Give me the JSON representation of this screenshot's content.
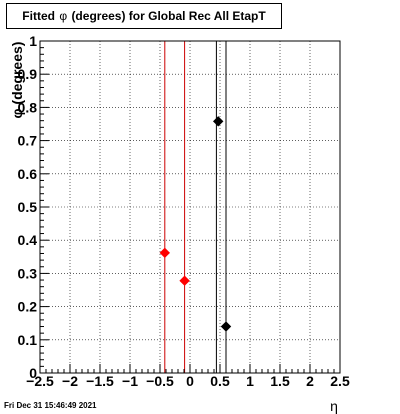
{
  "chart_data": {
    "type": "scatter",
    "title_prefix": "Fitted",
    "title_symbol": "φ",
    "title_suffix": "(degrees) for Global Rec All EtapT",
    "xlabel": "η",
    "ylabel": "φ (degrees)",
    "xlim": [
      -2.5,
      2.5
    ],
    "ylim": [
      0,
      1
    ],
    "xticks": [
      -2.5,
      -2,
      -1.5,
      -1,
      -0.5,
      0,
      0.5,
      1,
      1.5,
      2,
      2.5
    ],
    "xtick_labels": [
      "−2.5",
      "−2",
      "−1.5",
      "−1",
      "−0.5",
      "0",
      "0.5",
      "1",
      "1.5",
      "2",
      "2.5"
    ],
    "yticks": [
      0,
      0.1,
      0.2,
      0.3,
      0.4,
      0.5,
      0.6,
      0.7,
      0.8,
      0.9,
      1
    ],
    "ytick_labels": [
      "0",
      "0.1",
      "0.2",
      "0.3",
      "0.4",
      "0.5",
      "0.6",
      "0.7",
      "0.8",
      "0.9",
      "1"
    ],
    "grid": true,
    "series": [
      {
        "color": "#ff0000",
        "points": [
          [
            -0.42,
            0.362
          ],
          [
            -0.09,
            0.278
          ]
        ]
      },
      {
        "color": "#000000",
        "points": [
          [
            0.47,
            0.758
          ],
          [
            0.6,
            0.14
          ]
        ]
      }
    ],
    "vlines": [
      {
        "x": -0.42,
        "color": "#cc0000"
      },
      {
        "x": -0.09,
        "color": "#cc0000"
      },
      {
        "x": 0.44,
        "color": "#000000"
      },
      {
        "x": 0.6,
        "color": "#000000"
      }
    ]
  },
  "footer": {
    "timestamp": "Fri Dec 31 15:46:49 2021"
  }
}
